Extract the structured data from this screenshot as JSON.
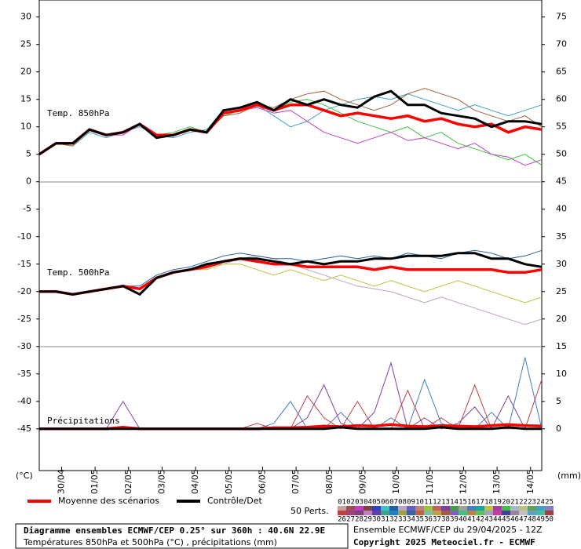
{
  "chart_data": {
    "type": "line",
    "title": "Diagramme ensembles ECMWF/CEP 0.25° sur 360h : 40.6N 22.9E",
    "subtitle": "Températures 850hPa et 500hPa (°C) , précipitations (mm)",
    "run_label": "Ensemble ECMWF/CEP du 29/04/2025 - 12Z",
    "copyright": "Copyright 2025 Meteociel.fr - ECMWF",
    "annotations": [
      "Temp. 850hPa",
      "Temp. 500hPa",
      "Précipitations"
    ],
    "y_unit": "(°C)",
    "y2_unit": "(mm)",
    "xlim": [
      0,
      360
    ],
    "xticks": [
      {
        "value": 16,
        "label": "30/04"
      },
      {
        "value": 40,
        "label": "01/05"
      },
      {
        "value": 64,
        "label": "02/05"
      },
      {
        "value": 88,
        "label": "03/05"
      },
      {
        "value": 112,
        "label": "04/05"
      },
      {
        "value": 136,
        "label": "05/05"
      },
      {
        "value": 160,
        "label": "06/05"
      },
      {
        "value": 184,
        "label": "07/05"
      },
      {
        "value": 208,
        "label": "08/05"
      },
      {
        "value": 232,
        "label": "09/05"
      },
      {
        "value": 256,
        "label": "10/05"
      },
      {
        "value": 280,
        "label": "11/05"
      },
      {
        "value": 304,
        "label": "12/05"
      },
      {
        "value": 328,
        "label": "13/05"
      },
      {
        "value": 352,
        "label": "14/05"
      }
    ],
    "ylim": [
      -52.6,
      33.1
    ],
    "yticks": [
      30,
      25,
      20,
      15,
      10,
      5,
      0,
      -5,
      -10,
      -15,
      -20,
      -25,
      -30,
      -35,
      -40,
      -45
    ],
    "y2lim": [
      -7.6,
      78.1
    ],
    "y2ticks": [
      75,
      70,
      65,
      60,
      55,
      50,
      45,
      40,
      35,
      30,
      25,
      20,
      15,
      10,
      5,
      0
    ],
    "x": [
      0,
      12,
      24,
      36,
      48,
      60,
      72,
      84,
      96,
      108,
      120,
      132,
      144,
      156,
      168,
      180,
      192,
      204,
      216,
      228,
      240,
      252,
      264,
      276,
      288,
      300,
      312,
      324,
      336,
      348,
      360
    ],
    "series": [
      {
        "color": "#40c040",
        "values": [
          5,
          7,
          7,
          9.5,
          8.5,
          9,
          10.5,
          8.5,
          9,
          10,
          9,
          12,
          13,
          14.5,
          13,
          14.5,
          15,
          14,
          12.5,
          11,
          10,
          9,
          10,
          8,
          9,
          7,
          6,
          5,
          4,
          5,
          3
        ]
      },
      {
        "color": "#40a0c0",
        "values": [
          5,
          7,
          6.5,
          9,
          8,
          9,
          10,
          8.5,
          8,
          9,
          9.5,
          13,
          13.5,
          14,
          12,
          10,
          11,
          13,
          14,
          15,
          15.5,
          15,
          16,
          15,
          14,
          13,
          14,
          13,
          12,
          13,
          14
        ]
      },
      {
        "color": "#c040c0",
        "values": [
          5,
          7,
          7,
          9.5,
          8.5,
          8.5,
          10.5,
          8.5,
          8.5,
          9.5,
          9,
          12.5,
          13,
          13.5,
          12.5,
          13,
          11,
          9,
          8,
          7,
          8,
          9,
          7.5,
          8,
          7,
          6,
          7,
          5,
          4.5,
          3,
          4
        ]
      },
      {
        "color": "#a06040",
        "values": [
          5,
          7,
          6.5,
          9.5,
          8.5,
          9,
          10.5,
          8.5,
          8.5,
          9.5,
          9,
          12,
          12.5,
          14,
          13.5,
          15,
          16,
          16.5,
          15,
          14,
          13,
          14,
          16,
          17,
          16,
          15,
          13,
          12,
          11,
          12,
          10
        ]
      },
      {
        "color": "#c0a0c0",
        "values": [
          -20,
          -20,
          -20.5,
          -20,
          -19.5,
          -19,
          -19.5,
          -17.5,
          -16.5,
          -16,
          -15.5,
          -15,
          -14,
          -13.5,
          -14,
          -15,
          -16,
          -17,
          -18,
          -19,
          -19.5,
          -20,
          -21,
          -22,
          -21,
          -22,
          -23,
          -24,
          -25,
          -26,
          -25
        ]
      },
      {
        "color": "#2060a0",
        "values": [
          -20,
          -20,
          -20.5,
          -20,
          -19.5,
          -19,
          -19,
          -17,
          -16,
          -15.5,
          -14.5,
          -13.5,
          -13,
          -13.5,
          -14,
          -14,
          -14.5,
          -14,
          -13.5,
          -14,
          -13.5,
          -14,
          -13,
          -13.5,
          -14,
          -13,
          -12.5,
          -13,
          -14,
          -13.5,
          -12.5
        ]
      },
      {
        "color": "#c0c040",
        "values": [
          -20,
          -20,
          -20.5,
          -20,
          -19.5,
          -19,
          -19.5,
          -17.5,
          -16.5,
          -16,
          -16,
          -15,
          -15,
          -16,
          -17,
          -16,
          -17,
          -18,
          -17,
          -18,
          -19,
          -18,
          -19,
          -20,
          -19,
          -18,
          -19,
          -20,
          -21,
          -22,
          -21
        ]
      },
      {
        "color": "#8040a0",
        "axis": "y2",
        "values": [
          0,
          0,
          0,
          0,
          0,
          5,
          0,
          0,
          0,
          0,
          0,
          0,
          0,
          0,
          0,
          0,
          2,
          8,
          1,
          0,
          3,
          12,
          0,
          2,
          0,
          1,
          4,
          0,
          6,
          0,
          0
        ]
      },
      {
        "color": "#4080c0",
        "axis": "y2",
        "values": [
          0,
          0,
          0,
          0,
          0,
          0,
          0,
          0,
          0,
          0,
          0,
          0,
          0,
          0,
          1,
          5,
          0,
          0,
          3,
          0,
          0,
          2,
          0,
          9,
          1,
          0,
          0,
          3,
          0,
          13,
          0
        ]
      },
      {
        "color": "#c04040",
        "axis": "y2",
        "values": [
          0,
          0,
          0,
          0,
          0,
          0,
          0,
          0,
          0,
          0,
          0,
          0,
          0,
          1,
          0,
          0,
          6,
          2,
          0,
          5,
          0,
          0,
          7,
          0,
          2,
          0,
          8,
          0,
          0,
          0,
          9
        ]
      },
      {
        "name": "Moyenne des scénarios",
        "color": "#ff0000",
        "values": [
          5,
          7,
          7,
          9.5,
          8.5,
          9,
          10.5,
          8.5,
          8.5,
          9.5,
          9,
          12.5,
          13,
          14,
          13,
          14,
          14,
          13,
          12,
          12.5,
          12,
          11.5,
          12,
          11,
          11.5,
          10.5,
          10,
          10.5,
          9,
          10,
          9.5
        ]
      },
      {
        "name": "Contrôle/Det",
        "color": "#000000",
        "values": [
          5,
          7,
          7,
          9.5,
          8.5,
          9,
          10.5,
          8,
          8.5,
          9.5,
          9,
          13,
          13.5,
          14.5,
          13,
          15,
          14,
          15,
          14,
          13.5,
          15.5,
          16.5,
          14,
          14,
          12.5,
          12,
          11.5,
          10,
          11,
          11,
          10.5
        ]
      },
      {
        "color": "#ff0000",
        "values": [
          -20,
          -20,
          -20.5,
          -20,
          -19.5,
          -19,
          -19.5,
          -17.5,
          -16.5,
          -16,
          -15.5,
          -14.5,
          -14,
          -14.5,
          -15,
          -15,
          -15.5,
          -15.5,
          -15.5,
          -15.5,
          -16,
          -15.5,
          -16,
          -16,
          -16,
          -16,
          -16,
          -16,
          -16.5,
          -16.5,
          -16
        ]
      },
      {
        "color": "#000000",
        "values": [
          -20,
          -20,
          -20.5,
          -20,
          -19.5,
          -19,
          -20.5,
          -17.5,
          -16.5,
          -16,
          -15,
          -14.5,
          -14,
          -14,
          -14.5,
          -15,
          -14.5,
          -15,
          -14.5,
          -14.5,
          -14,
          -14,
          -13.5,
          -13.5,
          -13.5,
          -13,
          -13,
          -14,
          -14,
          -15,
          -15.5
        ]
      },
      {
        "color": "#ff0000",
        "axis": "y2",
        "values": [
          0,
          0,
          0,
          0,
          0,
          0.3,
          0,
          0,
          0,
          0,
          0,
          0,
          0,
          0,
          0.2,
          0.2,
          0.3,
          0.5,
          0.4,
          0.6,
          0.5,
          0.8,
          0.5,
          0.4,
          0.6,
          0.5,
          0.4,
          0.6,
          0.8,
          0.6,
          0.5
        ]
      },
      {
        "color": "#000000",
        "axis": "y2",
        "values": [
          0,
          0,
          0,
          0,
          0,
          0,
          0,
          0,
          0,
          0,
          0,
          0,
          0,
          0,
          0,
          0,
          0,
          0,
          0.3,
          0,
          0,
          0,
          0,
          0,
          0.3,
          0,
          0,
          0,
          0.3,
          0,
          0
        ]
      }
    ],
    "perturbation_legend": {
      "title": "50 Perts.",
      "labels": [
        "01",
        "02",
        "03",
        "04",
        "05",
        "06",
        "07",
        "08",
        "09",
        "10",
        "11",
        "12",
        "13",
        "14",
        "15",
        "16",
        "17",
        "18",
        "19",
        "20",
        "21",
        "22",
        "23",
        "24",
        "25",
        "26",
        "27",
        "28",
        "29",
        "30",
        "31",
        "32",
        "33",
        "34",
        "35",
        "36",
        "37",
        "38",
        "39",
        "40",
        "41",
        "42",
        "43",
        "44",
        "45",
        "46",
        "47",
        "48",
        "49",
        "50"
      ],
      "colors": [
        "#c8a0a0",
        "#a05050",
        "#c040c0",
        "#804040",
        "#3040c0",
        "#40c0c0",
        "#2060a0",
        "#c0a0c0",
        "#6060c0",
        "#c08080",
        "#a0c040",
        "#c06060",
        "#8040a0",
        "#40a040",
        "#a0a0a0",
        "#4080c0",
        "#20a0a0",
        "#c0c040",
        "#a040a0",
        "#40c040",
        "#a0c0c0",
        "#c0c080",
        "#60a060",
        "#40a0c0",
        "#8080c0",
        "#c04040",
        "#a04080",
        "#804080",
        "#c080c0",
        "#6040a0",
        "#40a080",
        "#2080c0",
        "#a0a040",
        "#4060a0",
        "#c06040",
        "#80c0a0",
        "#c0a040",
        "#a06040",
        "#8060c0",
        "#40c080",
        "#c08040",
        "#60c060",
        "#a0a0c0",
        "#c040a0",
        "#4040a0",
        "#a080a0",
        "#c0c0c0",
        "#60a0c0",
        "#40c0a0",
        "#a04040"
      ]
    }
  }
}
